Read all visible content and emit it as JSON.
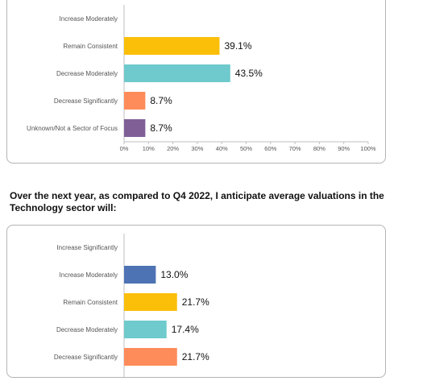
{
  "colors": {
    "increase_moderately": "#4e73b4",
    "remain_consistent": "#fbbf0a",
    "decrease_moderately": "#6ecacc",
    "decrease_significantly": "#fe8c5a",
    "unknown": "#7f5f96"
  },
  "chart_data": [
    {
      "type": "bar",
      "orientation": "horizontal",
      "title": "",
      "categories": [
        "Increase Moderately",
        "Remain Consistent",
        "Decrease Moderately",
        "Decrease Significantly",
        "Unknown/Not a Sector of Focus"
      ],
      "values": [
        null,
        39.1,
        43.5,
        8.7,
        8.7
      ],
      "value_labels": [
        "",
        "39.1%",
        "43.5%",
        "8.7%",
        "8.7%"
      ],
      "bar_colors": [
        "#4e73b4",
        "#fbbf0a",
        "#6ecacc",
        "#fe8c5a",
        "#7f5f96"
      ],
      "xlim": [
        0,
        100
      ],
      "x_ticks": [
        "0%",
        "10%",
        "20%",
        "30%",
        "40%",
        "50%",
        "60%",
        "70%",
        "80%",
        "90%",
        "100%"
      ],
      "grid": false
    },
    {
      "type": "bar",
      "orientation": "horizontal",
      "title": "Over the next year, as compared to Q4 2022, I anticipate average valuations in the\nTechnology sector will:",
      "categories": [
        "Increase Significantly",
        "Increase Moderately",
        "Remain Consistent",
        "Decrease Moderately",
        "Decrease Significantly"
      ],
      "values": [
        null,
        13.0,
        21.7,
        17.4,
        21.7
      ],
      "value_labels": [
        "",
        "13.0%",
        "21.7%",
        "17.4%",
        "21.7%"
      ],
      "bar_colors": [
        "#4e73b4",
        "#4e73b4",
        "#fbbf0a",
        "#6ecacc",
        "#fe8c5a"
      ],
      "xlim": [
        0,
        100
      ],
      "grid": false
    }
  ]
}
